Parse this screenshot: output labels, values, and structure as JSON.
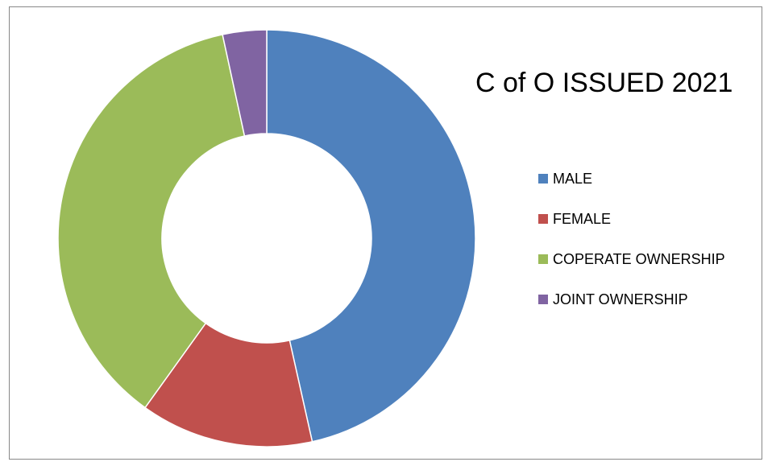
{
  "chart_data": {
    "type": "pie",
    "variant": "doughnut",
    "title": "C of O ISSUED 2021",
    "legend_position": "right",
    "categories": [
      "MALE",
      "FEMALE",
      "COPERATE OWNERSHIP",
      "JOINT OWNERSHIP"
    ],
    "values": [
      46.5,
      13.4,
      36.7,
      3.4
    ],
    "value_unit": "percent of total (estimated)",
    "colors": [
      "#4F81BD",
      "#C0504D",
      "#9BBB59",
      "#8064A2"
    ]
  }
}
